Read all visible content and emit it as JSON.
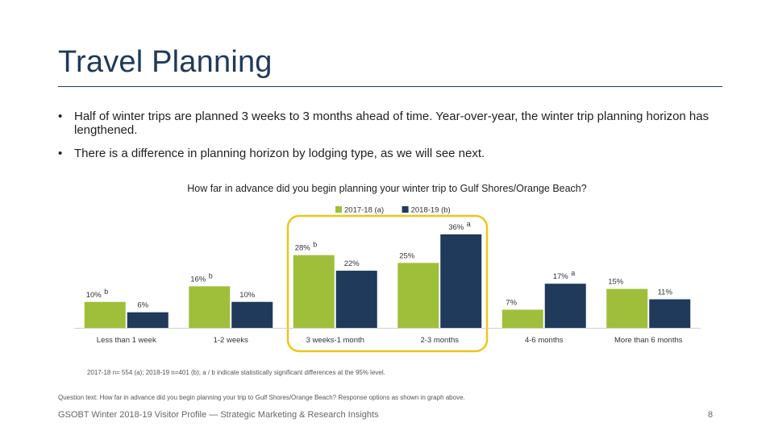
{
  "slide": {
    "title": "Travel Planning",
    "bullets": [
      "Half of winter trips are planned 3 weeks to 3 months ahead of time. Year-over-year, the winter trip planning horizon has lengthened.",
      "There is a difference in planning horizon by lodging type, as we will see next."
    ],
    "bullet_glyph": "•",
    "footnote": "2017-18 n= 554 (a); 2018-19 n=401 (b); a / b indicate statistically significant differences at the 95% level.",
    "question_text": "Question text: How far in advance did you begin planning your trip to Gulf Shores/Orange Beach? Response options as shown in graph above.",
    "footer": "GSOBT Winter 2018-19 Visitor Profile — Strategic Marketing & Research Insights",
    "page_number": "8"
  },
  "colors": {
    "series_a": "#9fbf3b",
    "series_b": "#1f3a5a",
    "highlight": "#f0c419",
    "axis": "#d0d0d0"
  },
  "chart_data": {
    "type": "bar",
    "title": "How far in advance did you begin planning your winter trip to Gulf Shores/Orange Beach?",
    "categories": [
      "Less than 1 week",
      "1-2 weeks",
      "3 weeks-1 month",
      "2-3 months",
      "4-6 months",
      "More than 6 months"
    ],
    "series": [
      {
        "name": "2017-18 (a)",
        "values": [
          10,
          16,
          28,
          25,
          7,
          15
        ],
        "labels": [
          "10%",
          "16%",
          "28%",
          "25%",
          "7%",
          "15%"
        ],
        "sig": [
          "b",
          "b",
          "b",
          "",
          "",
          ""
        ]
      },
      {
        "name": "2018-19 (b)",
        "values": [
          6,
          10,
          22,
          36,
          17,
          11
        ],
        "labels": [
          "6%",
          "10%",
          "22%",
          "36%",
          "17%",
          "11%"
        ],
        "sig": [
          "",
          "",
          "",
          "a",
          "a",
          ""
        ]
      }
    ],
    "highlighted_categories": [
      "3 weeks-1 month",
      "2-3 months"
    ],
    "ylim": [
      0,
      40
    ],
    "xlabel": "",
    "ylabel": "",
    "legend": "top-center",
    "grid": false
  }
}
